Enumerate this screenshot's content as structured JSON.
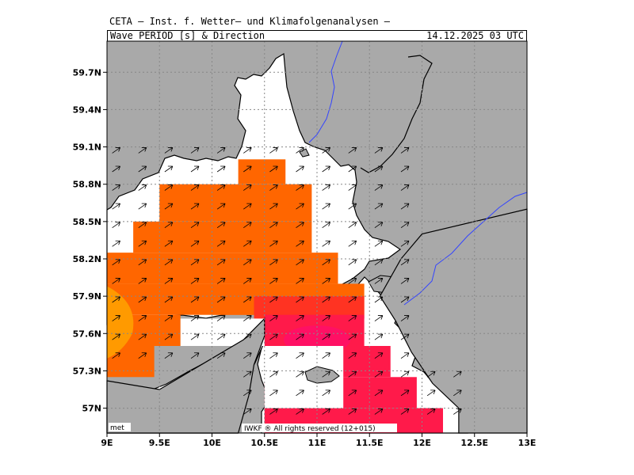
{
  "header": {
    "institute": "CETA – Inst. f. Wetter– und Klimafolgenanalysen –",
    "title": "Wave_PERIOD_[s]_&_Direction",
    "datetime": "14.12.2025 03 UTC"
  },
  "map": {
    "lon_range": [
      9.0,
      13.0
    ],
    "lat_range": [
      56.8,
      59.95
    ],
    "lon_ticks": [
      "9E",
      "9.5E",
      "10E",
      "10.5E",
      "11E",
      "11.5E",
      "12E",
      "12.5E",
      "13E"
    ],
    "lat_ticks": [
      "57N",
      "57.3N",
      "57.6N",
      "57.9N",
      "58.2N",
      "58.5N",
      "58.8N",
      "59.1N",
      "59.4N",
      "59.7N"
    ],
    "land_color": "#a9a9a9",
    "sea_color": "#ffffff",
    "river_color": "#3344ff",
    "period_colors": {
      "orange": "#ff6600",
      "light_orange": "#ff9a00",
      "red": "#ff3322",
      "crimson": "#ff1a4a",
      "magenta": "#ff0a7a"
    },
    "arrow_direction": "northeast",
    "grid": "dotted"
  },
  "footer": {
    "met_label": "met",
    "credit": "IWKF ® All rights reserved (12+015)"
  }
}
